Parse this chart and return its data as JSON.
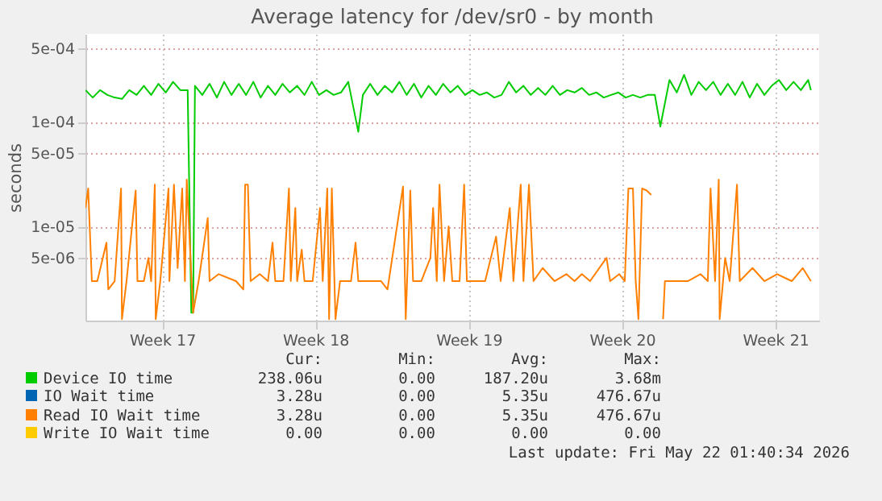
{
  "chart_data": {
    "type": "line",
    "title": "Average latency for /dev/sr0 - by month",
    "ylabel": "seconds",
    "log": "y",
    "grid": true,
    "legend": "bottom",
    "marker": "none",
    "line_style": "solid",
    "xlim": [
      "2026-04-20T00:00",
      "2026-05-23T12:00"
    ],
    "xticks": [
      {
        "value": "2026-04-23T12:00",
        "label": "Week 17"
      },
      {
        "value": "2026-04-30T12:00",
        "label": "Week 18"
      },
      {
        "value": "2026-05-07T12:00",
        "label": "Week 19"
      },
      {
        "value": "2026-05-14T12:00",
        "label": "Week 20"
      },
      {
        "value": "2026-05-21T12:00",
        "label": "Week 21"
      }
    ],
    "ylim": [
      1.26e-06,
      0.00069
    ],
    "yticks": [
      {
        "value": 5e-06,
        "label": "5e-06"
      },
      {
        "value": 1e-05,
        "label": "1e-05"
      },
      {
        "value": 5e-05,
        "label": "5e-05"
      },
      {
        "value": 0.0001,
        "label": "1e-04"
      },
      {
        "value": 0.0005,
        "label": "5e-04"
      }
    ],
    "series": [
      {
        "name": "Device IO time",
        "color": "#00cc00",
        "x": [
          "2026-04-20T00:00",
          "2026-04-20T08:00",
          "2026-04-20T16:00",
          "2026-04-21T00:00",
          "2026-04-21T08:00",
          "2026-04-21T16:00",
          "2026-04-22T00:00",
          "2026-04-22T08:00",
          "2026-04-22T16:00",
          "2026-04-23T00:00",
          "2026-04-23T08:00",
          "2026-04-23T16:00",
          "2026-04-24T00:00",
          "2026-04-24T08:00",
          "2026-04-24T16:00",
          "2026-04-24T20:00",
          "2026-04-24T22:00",
          "2026-04-25T00:00",
          "2026-04-25T08:00",
          "2026-04-25T16:00",
          "2026-04-26T00:00",
          "2026-04-26T08:00",
          "2026-04-26T16:00",
          "2026-04-27T00:00",
          "2026-04-27T08:00",
          "2026-04-27T16:00",
          "2026-04-28T00:00",
          "2026-04-28T08:00",
          "2026-04-28T16:00",
          "2026-04-29T00:00",
          "2026-04-29T08:00",
          "2026-04-29T16:00",
          "2026-04-30T00:00",
          "2026-04-30T08:00",
          "2026-04-30T16:00",
          "2026-05-01T00:00",
          "2026-05-01T08:00",
          "2026-05-01T16:00",
          "2026-05-02T00:00",
          "2026-05-02T11:00",
          "2026-05-02T16:00",
          "2026-05-03T00:00",
          "2026-05-03T08:00",
          "2026-05-03T16:00",
          "2026-05-04T00:00",
          "2026-05-04T08:00",
          "2026-05-04T16:00",
          "2026-05-05T00:00",
          "2026-05-05T08:00",
          "2026-05-05T16:00",
          "2026-05-06T00:00",
          "2026-05-06T08:00",
          "2026-05-06T16:00",
          "2026-05-07T00:00",
          "2026-05-07T08:00",
          "2026-05-07T16:00",
          "2026-05-08T00:00",
          "2026-05-08T08:00",
          "2026-05-08T16:00",
          "2026-05-09T00:00",
          "2026-05-09T08:00",
          "2026-05-09T16:00",
          "2026-05-10T00:00",
          "2026-05-10T08:00",
          "2026-05-10T16:00",
          "2026-05-11T00:00",
          "2026-05-11T08:00",
          "2026-05-11T16:00",
          "2026-05-12T00:00",
          "2026-05-12T08:00",
          "2026-05-12T16:00",
          "2026-05-13T00:00",
          "2026-05-13T08:00",
          "2026-05-13T16:00",
          "2026-05-14T00:00",
          "2026-05-14T08:00",
          "2026-05-14T16:00",
          "2026-05-15T00:00",
          "2026-05-15T08:00",
          "2026-05-15T16:00",
          "2026-05-16T00:00",
          "2026-05-16T06:00",
          "2026-05-16T16:00",
          "2026-05-17T00:00",
          "2026-05-17T08:00",
          "2026-05-17T16:00",
          "2026-05-18T00:00",
          "2026-05-18T08:00",
          "2026-05-18T16:00",
          "2026-05-19T00:00",
          "2026-05-19T08:00",
          "2026-05-19T16:00",
          "2026-05-20T00:00",
          "2026-05-20T08:00",
          "2026-05-20T16:00",
          "2026-05-21T00:00",
          "2026-05-21T08:00",
          "2026-05-21T16:00",
          "2026-05-22T00:00",
          "2026-05-22T08:00",
          "2026-05-22T16:00",
          "2026-05-23T00:00",
          "2026-05-23T03:00"
        ],
        "values": [
          0.0002,
          0.00017,
          0.0002,
          0.00018,
          0.00017,
          0.000165,
          0.0002,
          0.00018,
          0.00022,
          0.00018,
          0.00023,
          0.00019,
          0.00024,
          0.0002,
          0.0002,
          1.5e-06,
          1.5e-06,
          0.00022,
          0.00018,
          0.00023,
          0.00017,
          0.00024,
          0.00018,
          0.00023,
          0.00018,
          0.00024,
          0.00017,
          0.00022,
          0.00018,
          0.00023,
          0.00019,
          0.00022,
          0.00018,
          0.00024,
          0.00018,
          0.0002,
          0.00018,
          0.00019,
          0.00024,
          8e-05,
          0.00018,
          0.00023,
          0.00018,
          0.00022,
          0.00019,
          0.00024,
          0.00018,
          0.00023,
          0.00017,
          0.00022,
          0.00018,
          0.00023,
          0.00019,
          0.00022,
          0.00018,
          0.0002,
          0.00018,
          0.00019,
          0.00017,
          0.00018,
          0.00024,
          0.00019,
          0.00022,
          0.00018,
          0.00021,
          0.00018,
          0.00022,
          0.00018,
          0.0002,
          0.00019,
          0.00021,
          0.00018,
          0.00019,
          0.00017,
          0.00018,
          0.00019,
          0.00017,
          0.00018,
          0.00017,
          0.00018,
          0.00018,
          9e-05,
          0.00025,
          0.00019,
          0.00028,
          0.00018,
          0.00024,
          0.0002,
          0.00024,
          0.00018,
          0.00023,
          0.00018,
          0.00024,
          0.00017,
          0.00023,
          0.00018,
          0.00022,
          0.00025,
          0.0002,
          0.00024,
          0.0002,
          0.00025,
          0.0002
        ]
      },
      {
        "name": "IO Wait time",
        "color": "#0066b3"
      },
      {
        "name": "Read IO Wait time",
        "color": "#ff8000",
        "x": [
          "2026-04-20T00:00",
          "2026-04-20T03:00",
          "2026-04-20T07:00",
          "2026-04-20T13:00",
          "2026-04-20T23:00",
          "2026-04-21T01:00",
          "2026-04-21T08:00",
          "2026-04-21T15:00",
          "2026-04-21T16:00",
          "2026-04-21T21:00",
          "2026-04-22T07:00",
          "2026-04-22T09:00",
          "2026-04-22T16:00",
          "2026-04-22T21:00",
          "2026-04-23T00:00",
          "2026-04-23T04:00",
          "2026-04-23T05:00",
          "2026-04-23T10:00",
          "2026-04-23T19:00",
          "2026-04-23T20:00",
          "2026-04-24T01:00",
          "2026-04-24T05:00",
          "2026-04-24T10:00",
          "2026-04-24T13:00",
          "2026-04-24T15:00",
          "2026-04-24T22:00",
          "2026-04-25T04:00",
          "2026-04-25T14:00",
          "2026-04-25T16:00",
          "2026-04-26T02:00",
          "2026-04-26T21:00",
          "2026-04-27T05:00",
          "2026-04-27T07:00",
          "2026-04-27T10:00",
          "2026-04-27T13:00",
          "2026-04-27T23:00",
          "2026-04-28T08:00",
          "2026-04-28T13:00",
          "2026-04-28T16:00",
          "2026-04-29T01:00",
          "2026-04-29T07:00",
          "2026-04-29T09:00",
          "2026-04-29T14:00",
          "2026-04-29T16:00",
          "2026-04-29T21:00",
          "2026-04-30T00:00",
          "2026-04-30T09:00",
          "2026-04-30T17:00",
          "2026-04-30T20:00",
          "2026-05-01T01:00",
          "2026-05-01T03:00",
          "2026-05-01T06:00",
          "2026-05-01T10:00",
          "2026-05-01T15:00",
          "2026-05-02T03:00",
          "2026-05-02T08:00",
          "2026-05-02T11:00",
          "2026-05-02T18:00",
          "2026-05-03T02:00",
          "2026-05-03T12:00",
          "2026-05-03T19:00",
          "2026-05-04T12:00",
          "2026-05-04T15:00",
          "2026-05-04T20:00",
          "2026-05-04T23:00",
          "2026-05-05T08:00",
          "2026-05-05T18:00",
          "2026-05-05T21:00",
          "2026-05-06T01:00",
          "2026-05-06T04:00",
          "2026-05-06T09:00",
          "2026-05-06T14:00",
          "2026-05-06T18:00",
          "2026-05-07T02:00",
          "2026-05-07T07:00",
          "2026-05-07T10:00",
          "2026-05-07T22:00",
          "2026-05-08T06:00",
          "2026-05-08T18:00",
          "2026-05-08T23:00",
          "2026-05-09T09:00",
          "2026-05-09T13:00",
          "2026-05-09T21:00",
          "2026-05-10T00:00",
          "2026-05-10T06:00",
          "2026-05-10T11:00",
          "2026-05-10T21:00",
          "2026-05-11T10:00",
          "2026-05-11T23:00",
          "2026-05-12T08:00",
          "2026-05-12T16:00",
          "2026-05-13T01:00",
          "2026-05-13T19:00",
          "2026-05-13T23:00",
          "2026-05-14T09:00",
          "2026-05-14T15:00",
          "2026-05-14T19:00",
          "2026-05-15T00:00",
          "2026-05-15T03:00",
          "2026-05-15T06:00",
          "2026-05-15T10:00",
          "2026-05-15T15:00",
          "2026-05-15T20:00",
          "2026-05-16T01:00",
          "2026-05-16T08:00",
          "2026-05-16T09:00",
          "2026-05-16T11:00",
          "2026-05-16T21:00",
          "2026-05-17T12:00",
          "2026-05-18T02:00",
          "2026-05-18T10:00",
          "2026-05-18T13:00",
          "2026-05-18T18:00",
          "2026-05-18T22:00",
          "2026-05-18T23:00",
          "2026-05-19T05:00",
          "2026-05-19T10:00",
          "2026-05-19T18:00",
          "2026-05-19T21:00",
          "2026-05-20T11:00",
          "2026-05-21T00:00",
          "2026-05-21T14:00",
          "2026-05-22T06:00",
          "2026-05-22T18:00",
          "2026-05-23T03:00"
        ],
        "values": [
          1.5e-05,
          2.3e-05,
          3e-06,
          3e-06,
          7e-06,
          2.5e-06,
          3e-06,
          2.3e-05,
          1.3e-06,
          3e-06,
          2.2e-05,
          3e-06,
          3e-06,
          5e-06,
          3e-06,
          2.5e-05,
          1.3e-06,
          3e-06,
          2.3e-05,
          3e-06,
          2.5e-05,
          4e-06,
          2.3e-05,
          3e-06,
          2.8e-05,
          1.5e-06,
          3e-06,
          1.2e-05,
          3e-06,
          3.5e-06,
          3e-06,
          2.5e-06,
          2.5e-05,
          2.5e-05,
          3e-06,
          3.5e-06,
          3e-06,
          7e-06,
          3e-06,
          3e-06,
          2.3e-05,
          3e-06,
          1.5e-05,
          3e-06,
          6e-06,
          3e-06,
          3e-06,
          1.5e-05,
          3e-06,
          2.3e-05,
          1.3e-06,
          2.3e-05,
          1.3e-06,
          3e-06,
          3e-06,
          7e-06,
          3e-06,
          3e-06,
          3e-06,
          3e-06,
          2.5e-06,
          2.4e-05,
          1.3e-06,
          2.2e-05,
          3e-06,
          3e-06,
          5e-06,
          1.5e-05,
          3e-06,
          2.5e-05,
          3e-06,
          1e-05,
          3e-06,
          3e-06,
          2.5e-05,
          3e-06,
          3e-06,
          3e-06,
          8e-06,
          3e-06,
          1.5e-05,
          3e-06,
          2.5e-05,
          3e-06,
          2.5e-05,
          3e-06,
          4e-06,
          3e-06,
          3.5e-06,
          3e-06,
          3.5e-06,
          3e-06,
          5e-06,
          3e-06,
          3.5e-06,
          3e-06,
          2.3e-05,
          2.3e-05,
          3e-06,
          1.3e-06,
          2.3e-05,
          2.2e-05,
          2e-05,
          null,
          null,
          1.3e-06,
          3e-06,
          3e-06,
          3e-06,
          3.5e-06,
          3e-06,
          2.3e-05,
          3e-06,
          2.8e-05,
          1.3e-06,
          5e-06,
          3e-06,
          2.5e-05,
          3e-06,
          4e-06,
          3e-06,
          3.5e-06,
          3e-06,
          4e-06,
          3e-06
        ]
      },
      {
        "name": "Write IO Wait time",
        "color": "#ffcc00"
      }
    ],
    "annotations": [
      "Cur:",
      "Min:",
      "Avg:",
      "Max:",
      "238.06u",
      "0.00",
      "187.20u",
      "3.68m",
      "3.28u",
      "0.00",
      "5.35u",
      "476.67u",
      "3.28u",
      "0.00",
      "5.35u",
      "476.67u",
      "0.00",
      "0.00",
      "0.00",
      "0.00",
      "Last update: Fri May 22 01:40:34 2026"
    ]
  }
}
